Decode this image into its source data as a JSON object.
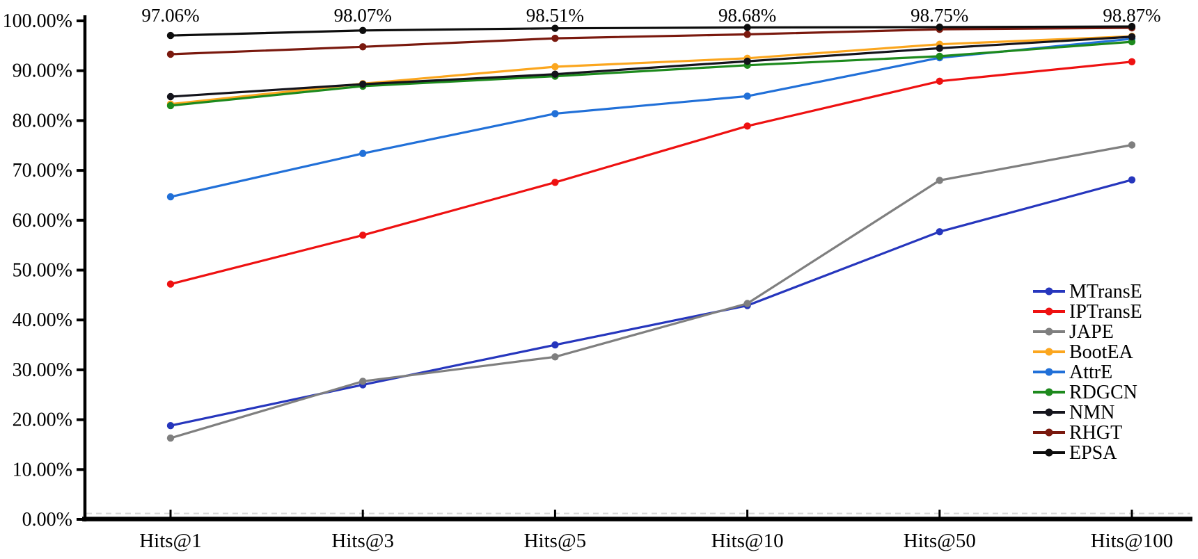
{
  "figure": {
    "background": "#ffffff",
    "axis_color": "#000000",
    "zero_gridline_color": "#d8d8d8",
    "text_color": "#000000"
  },
  "chart_data": {
    "type": "line",
    "title": "",
    "xlabel": "",
    "ylabel": "",
    "categories": [
      "Hits@1",
      "Hits@3",
      "Hits@5",
      "Hits@10",
      "Hits@50",
      "Hits@100"
    ],
    "y_axis": {
      "min": 0,
      "max": 100,
      "tick_step": 10,
      "tick_labels": [
        "0.00%",
        "10.00%",
        "20.00%",
        "30.00%",
        "40.00%",
        "50.00%",
        "60.00%",
        "70.00%",
        "80.00%",
        "90.00%",
        "100.00%"
      ]
    },
    "grid": "dashed-line-at-zero-only",
    "legend_position": "inside-right",
    "series": [
      {
        "name": "MTransE",
        "color": "#2636bd",
        "values": [
          18.8,
          27.0,
          35.0,
          42.9,
          57.7,
          68.1
        ]
      },
      {
        "name": "IPTransE",
        "color": "#ee1111",
        "values": [
          47.2,
          57.0,
          67.6,
          78.9,
          87.9,
          91.8
        ]
      },
      {
        "name": "JAPE",
        "color": "#7f7f7f",
        "values": [
          16.3,
          27.7,
          32.6,
          43.3,
          68.0,
          75.1
        ]
      },
      {
        "name": "BootEA",
        "color": "#fba61e",
        "values": [
          83.3,
          87.4,
          90.8,
          92.5,
          95.3,
          96.9
        ]
      },
      {
        "name": "AttrE",
        "color": "#2170d8",
        "values": [
          64.7,
          73.4,
          81.4,
          84.9,
          92.6,
          96.4
        ]
      },
      {
        "name": "RDGCN",
        "color": "#1d8a1d",
        "values": [
          83.0,
          86.9,
          88.9,
          91.1,
          92.9,
          95.8
        ]
      },
      {
        "name": "NMN",
        "color": "#14141c",
        "values": [
          84.8,
          87.3,
          89.3,
          91.9,
          94.5,
          96.8
        ]
      },
      {
        "name": "RHGT",
        "color": "#7a190e",
        "values": [
          93.3,
          94.8,
          96.5,
          97.3,
          98.3,
          98.6
        ]
      },
      {
        "name": "EPSA",
        "color": "#0d0d0d",
        "values": [
          97.06,
          98.07,
          98.51,
          98.68,
          98.75,
          98.87
        ]
      }
    ],
    "top_annotations": [
      "97.06%",
      "98.07%",
      "98.51%",
      "98.68%",
      "98.75%",
      "98.87%"
    ]
  }
}
